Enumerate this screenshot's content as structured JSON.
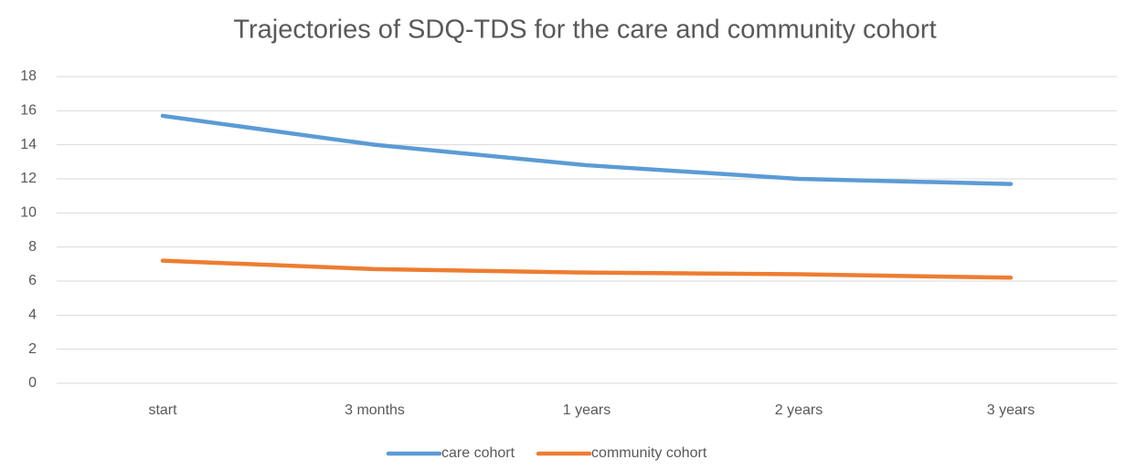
{
  "chart_data": {
    "type": "line",
    "title": "Trajectories of SDQ-TDS for the care and community cohort",
    "categories": [
      "start",
      "3 months",
      "1 years",
      "2 years",
      "3 years"
    ],
    "series": [
      {
        "name": "care cohort",
        "color": "#5b9bd5",
        "values": [
          15.7,
          14.0,
          12.8,
          12.0,
          11.7
        ]
      },
      {
        "name": "community cohort",
        "color": "#ed7d31",
        "values": [
          7.2,
          6.7,
          6.5,
          6.4,
          6.2
        ]
      }
    ],
    "ylim": [
      0,
      18
    ],
    "yticks": [
      0,
      2,
      4,
      6,
      8,
      10,
      12,
      14,
      16,
      18
    ],
    "grid": true,
    "legend": "bottom"
  }
}
